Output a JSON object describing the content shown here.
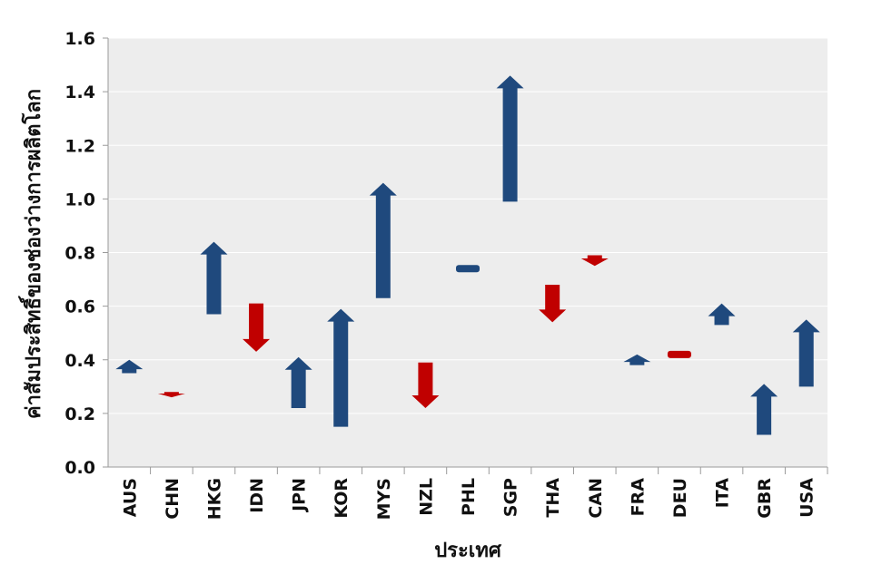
{
  "chart_data": {
    "type": "arrow",
    "ylabel": "ค่าสัมประสิทธิ์ของช่องว่างการผลิตโลก",
    "xlabel": "ประเทศ",
    "ylim": [
      0,
      1.6
    ],
    "yticks": [
      "0.0",
      "0.2",
      "0.4",
      "0.6",
      "0.8",
      "1.0",
      "1.2",
      "1.4",
      "1.6"
    ],
    "grid": true,
    "colors": {
      "increase": "#1F497D",
      "decrease": "#C00000",
      "unchanged": "#1F497D",
      "plot_bg": "#EDEDED"
    },
    "points": [
      {
        "label": "AUS",
        "from": 0.35,
        "to": 0.4
      },
      {
        "label": "CHN",
        "from": 0.28,
        "to": 0.26
      },
      {
        "label": "HKG",
        "from": 0.57,
        "to": 0.84
      },
      {
        "label": "IDN",
        "from": 0.61,
        "to": 0.43
      },
      {
        "label": "JPN",
        "from": 0.22,
        "to": 0.41
      },
      {
        "label": "KOR",
        "from": 0.15,
        "to": 0.59
      },
      {
        "label": "MYS",
        "from": 0.63,
        "to": 1.06
      },
      {
        "label": "NZL",
        "from": 0.39,
        "to": 0.22
      },
      {
        "label": "PHL",
        "from": 0.74,
        "to": 0.74
      },
      {
        "label": "SGP",
        "from": 0.99,
        "to": 1.46
      },
      {
        "label": "THA",
        "from": 0.68,
        "to": 0.54
      },
      {
        "label": "CAN",
        "from": 0.79,
        "to": 0.75
      },
      {
        "label": "FRA",
        "from": 0.38,
        "to": 0.42
      },
      {
        "label": "DEU",
        "from": 0.42,
        "to": 0.42
      },
      {
        "label": "ITA",
        "from": 0.53,
        "to": 0.61
      },
      {
        "label": "GBR",
        "from": 0.12,
        "to": 0.31
      },
      {
        "label": "USA",
        "from": 0.3,
        "to": 0.55
      }
    ]
  }
}
